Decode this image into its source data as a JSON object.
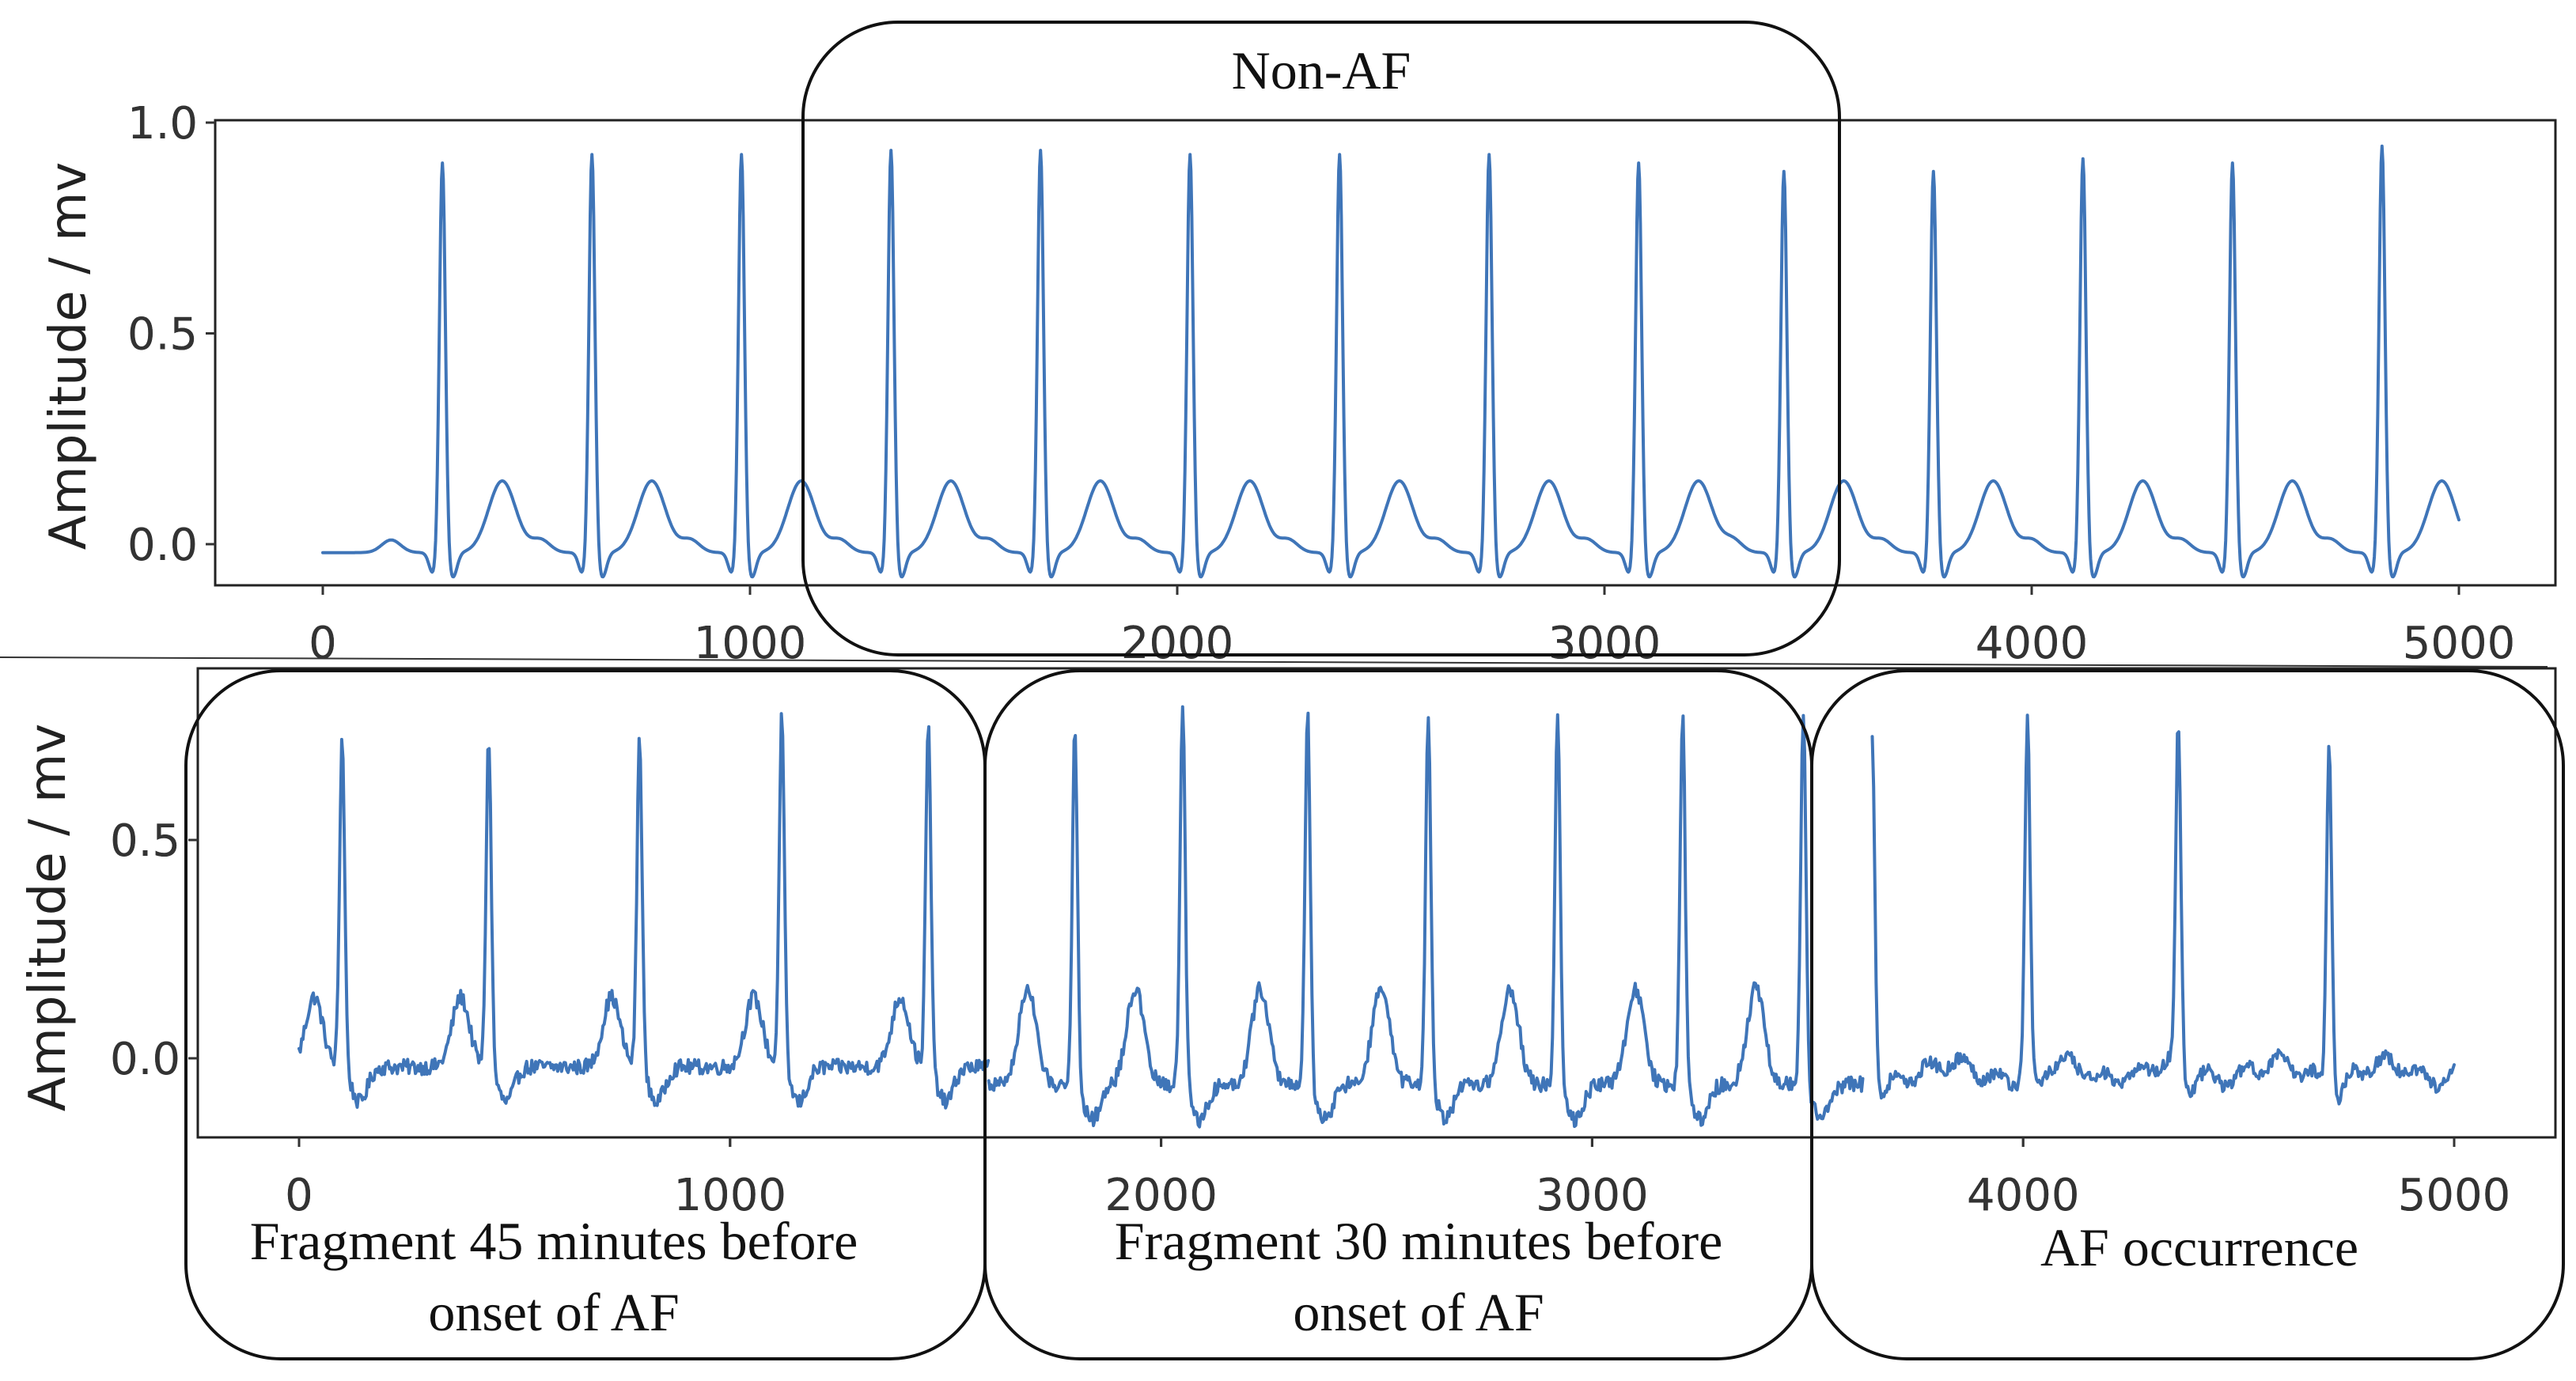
{
  "colors": {
    "signal": "#3f75b8",
    "axis": "#222222",
    "text": "#333333"
  },
  "chart_data": [
    {
      "type": "line",
      "panel": "top",
      "xlabel": "",
      "ylabel": "Amplitude / mv",
      "xlim": [
        -250,
        5250
      ],
      "ylim": [
        -0.1,
        1.0
      ],
      "xticks": [
        0,
        1000,
        2000,
        3000,
        4000,
        5000
      ],
      "xtick_labels": [
        "0",
        "1000",
        "2000",
        "3000",
        "4000",
        "5000"
      ],
      "yticks": [
        0.0,
        0.5,
        1.0
      ],
      "ytick_labels": [
        "0.0",
        "0.5",
        "1.0"
      ],
      "grid": false,
      "series": [
        {
          "style": "sinus",
          "r_peaks": [
            280,
            630,
            980,
            1330,
            1680,
            2030,
            2380,
            2730,
            3080,
            3420,
            3770,
            4120,
            4470,
            4820
          ],
          "r_amplitudes": [
            0.91,
            0.93,
            0.93,
            0.94,
            0.94,
            0.93,
            0.93,
            0.93,
            0.91,
            0.89,
            0.89,
            0.92,
            0.91,
            0.95
          ],
          "baseline": -0.02,
          "t_amplitude": 0.17,
          "t_offset": 140,
          "p_amplitude": 0.03
        }
      ],
      "annotations": [
        {
          "text": "Non-AF",
          "x_range": [
            1130,
            3580
          ]
        }
      ]
    },
    {
      "type": "line",
      "panel": "bottom",
      "xlabel": "",
      "ylabel": "Amplitude / mv",
      "xlim": [
        -250,
        5250
      ],
      "ylim": [
        -0.18,
        0.86
      ],
      "xticks": [
        0,
        1000,
        2000,
        3000,
        4000,
        5000
      ],
      "xtick_labels": [
        "0",
        "1000",
        "2000",
        "3000",
        "4000",
        "5000"
      ],
      "yticks": [
        0.0,
        0.5
      ],
      "ytick_labels": [
        "0.0",
        "0.5"
      ],
      "grid": false,
      "series": [
        {
          "style": "pre-af",
          "x_range": [
            0,
            1600
          ],
          "r_peaks": [
            100,
            440,
            790,
            1120,
            1460
          ],
          "r_amplitudes": [
            0.74,
            0.74,
            0.74,
            0.79,
            0.77
          ],
          "baseline": -0.02,
          "t_amplitude": 0.16,
          "t_offset": -65
        },
        {
          "style": "pre-af",
          "x_range": [
            1600,
            3630
          ],
          "r_peaks": [
            1800,
            2050,
            2340,
            2620,
            2920,
            3210,
            3490
          ],
          "r_amplitudes": [
            0.76,
            0.82,
            0.8,
            0.8,
            0.8,
            0.8,
            0.8
          ],
          "baseline": -0.06,
          "t_amplitude": 0.22,
          "t_offset": -110
        },
        {
          "style": "af",
          "x_range": [
            3650,
            5000
          ],
          "r_peaks": [
            3650,
            4010,
            4360,
            4710
          ],
          "r_amplitudes": [
            0.75,
            0.78,
            0.75,
            0.75
          ],
          "baseline": -0.03
        }
      ],
      "annotations": [
        {
          "text": "Fragment 45 minutes before onset of AF",
          "x_range": [
            -200,
            1600
          ]
        },
        {
          "text": "Fragment 30 minutes before onset of AF",
          "x_range": [
            1600,
            3500
          ]
        },
        {
          "text": "AF occurrence",
          "x_range": [
            3500,
            5200
          ]
        }
      ]
    }
  ],
  "boxes": {
    "top": {
      "label_lines": [
        "Non-AF"
      ]
    },
    "bottom": [
      {
        "label_lines": [
          "Fragment 45 minutes before",
          "onset of AF"
        ]
      },
      {
        "label_lines": [
          "Fragment 30 minutes before",
          "onset of AF"
        ]
      },
      {
        "label_lines": [
          "AF occurrence"
        ]
      }
    ]
  }
}
